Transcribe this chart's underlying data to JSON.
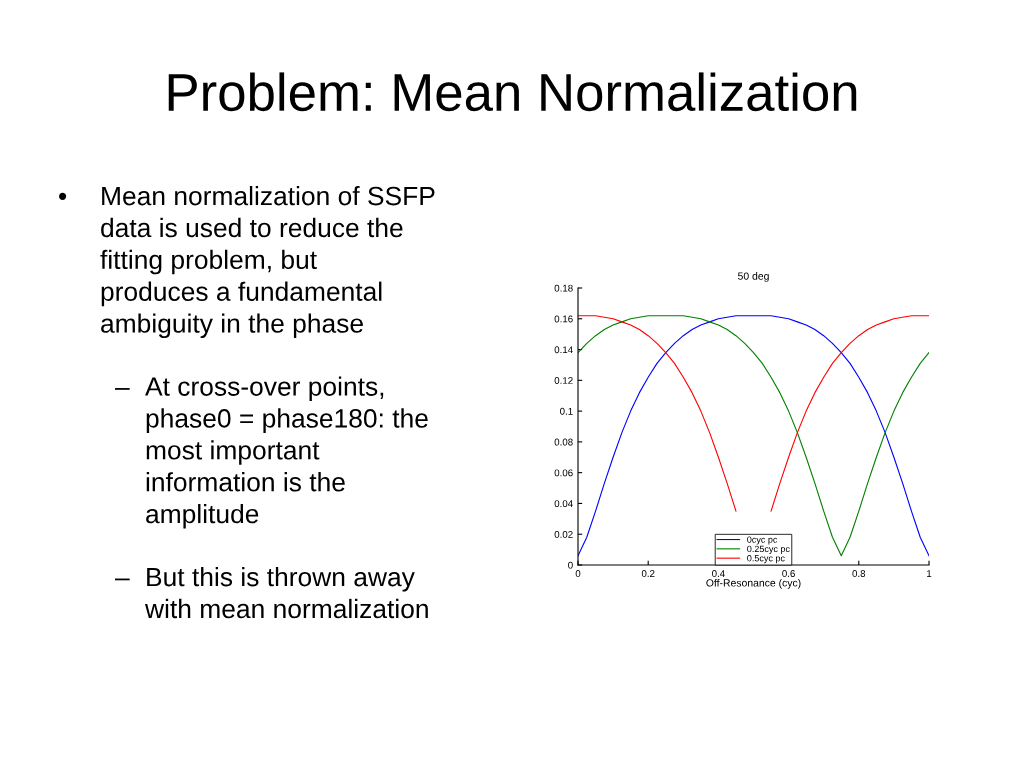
{
  "chart_data": {
    "type": "line",
    "title": "50 deg",
    "xlabel": "Off-Resonance (cyc)",
    "annotations": [
      "Problem: Mean Normalization",
      "• Mean normalization of SSFP\ndata is used to reduce the\nfitting problem, but\nproduces a fundamental\nambiguity in the phase",
      "– At cross-over points,\nphase0 = phase180: the\nmost important\ninformation is the\namplitude",
      "– But this is thrown away\nwith mean normalization"
    ],
    "x": [
      0,
      0.025,
      0.05,
      0.075,
      0.1,
      0.125,
      0.15,
      0.175,
      0.2,
      0.225,
      0.25,
      0.275,
      0.3,
      0.325,
      0.35,
      0.375,
      0.4,
      0.425,
      0.45,
      0.475,
      0.5,
      0.525,
      0.55,
      0.575,
      0.6,
      0.625,
      0.65,
      0.675,
      0.7,
      0.725,
      0.75,
      0.775,
      0.8,
      0.825,
      0.85,
      0.875,
      0.9,
      0.925,
      0.95,
      0.975,
      1
    ],
    "series": [
      {
        "name": "0cyc pc",
        "color": "#0000ff",
        "values": [
          0.006,
          0.018,
          0.035,
          0.053,
          0.07,
          0.086,
          0.1,
          0.112,
          0.122,
          0.131,
          0.138,
          0.144,
          0.149,
          0.153,
          0.156,
          0.158,
          0.16,
          0.161,
          0.162,
          0.162,
          0.162,
          0.162,
          0.162,
          0.161,
          0.16,
          0.158,
          0.156,
          0.153,
          0.149,
          0.144,
          0.138,
          0.131,
          0.122,
          0.112,
          0.1,
          0.086,
          0.07,
          0.053,
          0.035,
          0.018,
          0.006
        ]
      },
      {
        "name": "0.25cyc pc",
        "color": "#008000",
        "values": [
          0.138,
          0.144,
          0.149,
          0.153,
          0.156,
          0.158,
          0.16,
          0.161,
          0.162,
          0.162,
          0.162,
          0.162,
          0.162,
          0.161,
          0.16,
          0.158,
          0.156,
          0.153,
          0.149,
          0.144,
          0.138,
          0.131,
          0.122,
          0.112,
          0.1,
          0.086,
          0.07,
          0.053,
          0.035,
          0.018,
          0.006,
          0.018,
          0.035,
          0.053,
          0.07,
          0.086,
          0.1,
          0.112,
          0.122,
          0.131,
          0.138
        ]
      },
      {
        "name": "0.5cyc pc",
        "color": "#ff0000",
        "values": [
          0.162,
          0.162,
          0.162,
          0.161,
          0.16,
          0.158,
          0.156,
          0.153,
          0.149,
          0.144,
          0.138,
          0.131,
          0.122,
          0.112,
          0.1,
          0.086,
          0.07,
          0.053,
          0.035,
          null,
          null,
          null,
          0.035,
          0.053,
          0.07,
          0.086,
          0.1,
          0.112,
          0.122,
          0.131,
          0.138,
          0.144,
          0.149,
          0.153,
          0.156,
          0.158,
          0.16,
          0.161,
          0.162,
          0.162,
          0.162
        ]
      }
    ],
    "xlim": [
      0,
      1
    ],
    "xticks": [
      0,
      0.2,
      0.4,
      0.6,
      0.8,
      1
    ],
    "ylim": [
      0,
      0.18
    ],
    "yticks": [
      0,
      0.02,
      0.04,
      0.06,
      0.08,
      0.1,
      0.12,
      0.14,
      0.16,
      0.18
    ],
    "legend": "bottom",
    "grid": false,
    "marker": "none",
    "line_style": "solid"
  }
}
